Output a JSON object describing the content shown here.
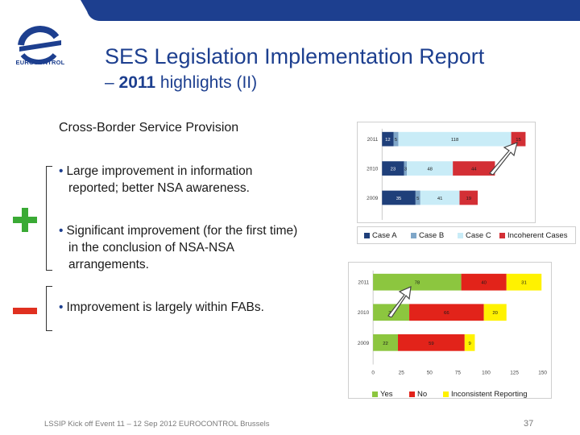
{
  "header": {
    "logo_text": "EUROCONTROL",
    "title_line1": "SES Legislation Implementation Report",
    "title_line2_prefix": "– ",
    "title_line2_year": "2011",
    "title_line2_suffix": " highlights (II)"
  },
  "content": {
    "section_heading": "Cross-Border Service Provision",
    "bullets": {
      "b1_line1": "Large improvement in information",
      "b1_line2": "reported; better NSA awareness.",
      "b2_line1": "Significant improvement (for the first time)",
      "b2_line2": "in the conclusion of NSA-NSA",
      "b2_line3": "arrangements.",
      "b3_line1": "Improvement is largely within FABs."
    },
    "symbols": {
      "positive": "plus-icon",
      "negative": "minus-icon"
    },
    "colors": {
      "plus": "#3aaa35",
      "minus": "#e03020",
      "title": "#1d3f8f"
    }
  },
  "chart_data": [
    {
      "type": "bar",
      "orientation": "horizontal",
      "stacked": true,
      "categories": [
        "2011",
        "2010",
        "2009"
      ],
      "series": [
        {
          "name": "Case A",
          "color": "#1f3f7a",
          "values": [
            12,
            23,
            35
          ]
        },
        {
          "name": "Case B",
          "color": "#7fa6c8",
          "values": [
            5,
            3,
            5
          ]
        },
        {
          "name": "Case C",
          "color": "#c9ecf7",
          "values": [
            118,
            48,
            41
          ]
        },
        {
          "name": "Incoherent Cases",
          "color": "#d32f35",
          "values": [
            15,
            44,
            19
          ]
        }
      ],
      "xticks": [
        "0",
        "25",
        "50",
        "75",
        "100",
        "125",
        "150"
      ],
      "xlim": [
        0,
        150
      ]
    },
    {
      "type": "bar",
      "orientation": "horizontal",
      "stacked": true,
      "categories": [
        "2011",
        "2010",
        "2009"
      ],
      "series": [
        {
          "name": "Yes",
          "color": "#8cc63f",
          "values": [
            78,
            32,
            22
          ]
        },
        {
          "name": "No",
          "color": "#e2231a",
          "values": [
            40,
            66,
            59
          ]
        },
        {
          "name": "Inconsistent Reporting",
          "color": "#fff200",
          "values": [
            31,
            20,
            9
          ]
        }
      ],
      "xticks": [
        "0",
        "25",
        "50",
        "75",
        "100",
        "125",
        "150"
      ],
      "xlim": [
        0,
        150
      ]
    }
  ],
  "footer": {
    "text": "LSSIP Kick off Event 11 – 12 Sep 2012 EUROCONTROL Brussels",
    "page_number": "37"
  }
}
